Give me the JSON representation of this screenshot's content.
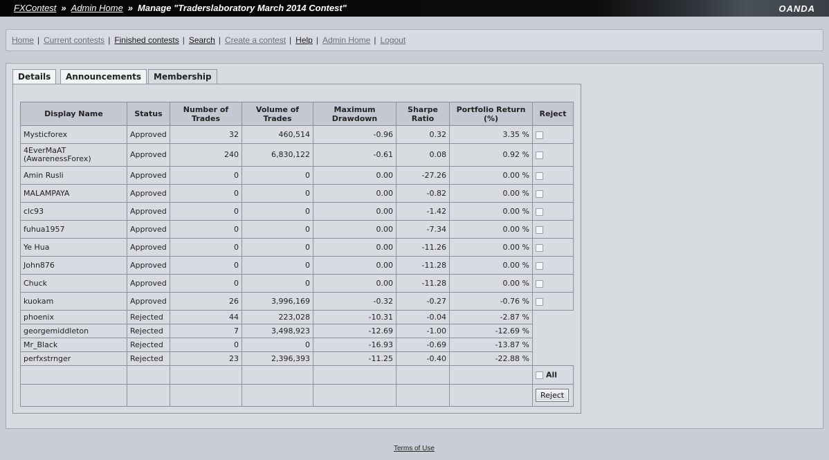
{
  "header": {
    "crumb_fxcontest": "FXContest",
    "crumb_sep": "»",
    "crumb_admin": "Admin Home",
    "crumb_current": "Manage \"Traderslaboratory March 2014 Contest\"",
    "logo": "OANDA"
  },
  "nav": {
    "home": "Home",
    "current": "Current contests",
    "finished": "Finished contests",
    "search": "Search",
    "create": "Create a contest",
    "help": "Help",
    "admin": "Admin Home",
    "logout": "Logout",
    "pipe": "|"
  },
  "tabs": {
    "details": "Details",
    "announcements": "Announcements",
    "membership": "Membership"
  },
  "table": {
    "headers": {
      "name": "Display Name",
      "status": "Status",
      "trades": "Number of Trades",
      "volume": "Volume of Trades",
      "drawdown": "Maximum Drawdown",
      "sharpe": "Sharpe Ratio",
      "return": "Portfolio Return (%)",
      "reject": "Reject"
    },
    "rows": [
      {
        "name": "Mysticforex",
        "status": "Approved",
        "trades": "32",
        "volume": "460,514",
        "drawdown": "-0.96",
        "sharpe": "0.32",
        "ret": "3.35 %"
      },
      {
        "name": "4EverMaAT (AwarenessForex)",
        "status": "Approved",
        "trades": "240",
        "volume": "6,830,122",
        "drawdown": "-0.61",
        "sharpe": "0.08",
        "ret": "0.92 %"
      },
      {
        "name": "Amin Rusli",
        "status": "Approved",
        "trades": "0",
        "volume": "0",
        "drawdown": "0.00",
        "sharpe": "-27.26",
        "ret": "0.00 %"
      },
      {
        "name": "MALAMPAYA",
        "status": "Approved",
        "trades": "0",
        "volume": "0",
        "drawdown": "0.00",
        "sharpe": "-0.82",
        "ret": "0.00 %"
      },
      {
        "name": "clc93",
        "status": "Approved",
        "trades": "0",
        "volume": "0",
        "drawdown": "0.00",
        "sharpe": "-1.42",
        "ret": "0.00 %"
      },
      {
        "name": "fuhua1957",
        "status": "Approved",
        "trades": "0",
        "volume": "0",
        "drawdown": "0.00",
        "sharpe": "-7.34",
        "ret": "0.00 %"
      },
      {
        "name": "Ye Hua",
        "status": "Approved",
        "trades": "0",
        "volume": "0",
        "drawdown": "0.00",
        "sharpe": "-11.26",
        "ret": "0.00 %"
      },
      {
        "name": "John876",
        "status": "Approved",
        "trades": "0",
        "volume": "0",
        "drawdown": "0.00",
        "sharpe": "-11.28",
        "ret": "0.00 %"
      },
      {
        "name": "Chuck",
        "status": "Approved",
        "trades": "0",
        "volume": "0",
        "drawdown": "0.00",
        "sharpe": "-11.28",
        "ret": "0.00 %"
      },
      {
        "name": "kuokam",
        "status": "Approved",
        "trades": "26",
        "volume": "3,996,169",
        "drawdown": "-0.32",
        "sharpe": "-0.27",
        "ret": "-0.76 %"
      },
      {
        "name": "phoenix",
        "status": "Rejected",
        "trades": "44",
        "volume": "223,028",
        "drawdown": "-10.31",
        "sharpe": "-0.04",
        "ret": "-2.87 %"
      },
      {
        "name": "georgemiddleton",
        "status": "Rejected",
        "trades": "7",
        "volume": "3,498,923",
        "drawdown": "-12.69",
        "sharpe": "-1.00",
        "ret": "-12.69 %"
      },
      {
        "name": "Mr_Black",
        "status": "Rejected",
        "trades": "0",
        "volume": "0",
        "drawdown": "-16.93",
        "sharpe": "-0.69",
        "ret": "-13.87 %"
      },
      {
        "name": "perfxstrnger",
        "status": "Rejected",
        "trades": "23",
        "volume": "2,396,393",
        "drawdown": "-11.25",
        "sharpe": "-0.40",
        "ret": "-22.88 %"
      }
    ],
    "all_label": "All",
    "reject_button": "Reject"
  },
  "footer": {
    "terms": "Terms of Use"
  }
}
